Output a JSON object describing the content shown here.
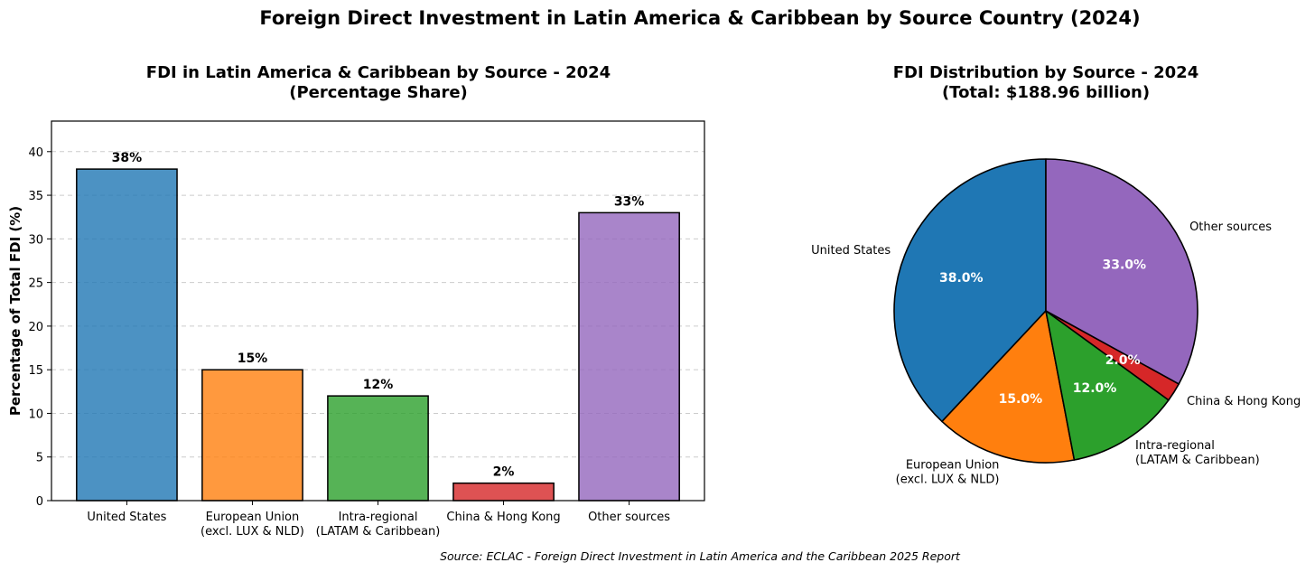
{
  "suptitle": "Foreign Direct Investment in Latin America & Caribbean by Source Country (2024)",
  "source_note": "Source: ECLAC - Foreign Direct Investment in Latin America and the Caribbean 2025 Report",
  "chart_data": [
    {
      "type": "bar",
      "title": "FDI in Latin America & Caribbean by Source - 2024",
      "subtitle": "(Percentage Share)",
      "xlabel": "",
      "ylabel": "Percentage of Total FDI (%)",
      "categories": [
        [
          "United States"
        ],
        [
          "European Union",
          "(excl. LUX & NLD)"
        ],
        [
          "Intra-regional",
          "(LATAM & Caribbean)"
        ],
        [
          "China & Hong Kong"
        ],
        [
          "Other sources"
        ]
      ],
      "values": [
        38,
        15,
        12,
        2,
        33
      ],
      "value_labels": [
        "38%",
        "15%",
        "12%",
        "2%",
        "33%"
      ],
      "colors": [
        "#1f77b4",
        "#ff7f0e",
        "#2ca02c",
        "#d62728",
        "#9467bd"
      ],
      "ylim": [
        0,
        43.5
      ],
      "yticks": [
        0,
        5,
        10,
        15,
        20,
        25,
        30,
        35,
        40
      ],
      "grid": "y-dashed"
    },
    {
      "type": "pie",
      "title": "FDI Distribution by Source - 2024",
      "subtitle": "(Total: $188.96 billion)",
      "labels": [
        [
          "United States"
        ],
        [
          "European Union",
          "(excl. LUX & NLD)"
        ],
        [
          "Intra-regional",
          "(LATAM & Caribbean)"
        ],
        [
          "China & Hong Kong"
        ],
        [
          "Other sources"
        ]
      ],
      "values": [
        38.0,
        15.0,
        12.0,
        2.0,
        33.0
      ],
      "pct_labels": [
        "38.0%",
        "15.0%",
        "12.0%",
        "2.0%",
        "33.0%"
      ],
      "colors": [
        "#1f77b4",
        "#ff7f0e",
        "#2ca02c",
        "#d62728",
        "#9467bd"
      ],
      "start_angle": "top",
      "direction": "counterclockwise"
    }
  ]
}
